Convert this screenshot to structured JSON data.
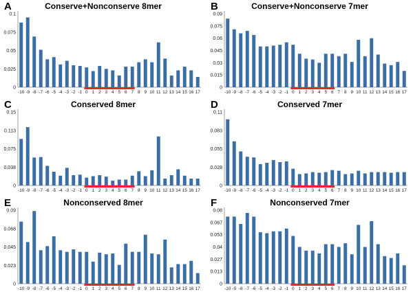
{
  "colors": {
    "bar": "#3b6ea5",
    "highlight": "#e8262a",
    "axis": "#888888"
  },
  "chart_data": [
    {
      "type": "bar",
      "letter": "A",
      "title": "Conserve+Nonconserve 8mer",
      "ylim": [
        0,
        0.1
      ],
      "yticks": [
        "0",
        "0.025",
        "0.05",
        "0.075",
        "0.1"
      ],
      "categories": [
        "-10",
        "-9",
        "-8",
        "-7",
        "-6",
        "-5",
        "-4",
        "-3",
        "-2",
        "-1",
        "0",
        "1",
        "2",
        "3",
        "4",
        "5",
        "6",
        "7",
        "8",
        "9",
        "10",
        "11",
        "12",
        "13",
        "14",
        "15",
        "16",
        "17"
      ],
      "values": [
        0.088,
        0.095,
        0.069,
        0.051,
        0.038,
        0.041,
        0.031,
        0.036,
        0.03,
        0.029,
        0.027,
        0.022,
        0.029,
        0.025,
        0.023,
        0.016,
        0.028,
        0.028,
        0.034,
        0.038,
        0.034,
        0.061,
        0.039,
        0.016,
        0.023,
        0.028,
        0.023,
        0.014
      ],
      "highlight": {
        "from": "0",
        "to": "7"
      }
    },
    {
      "type": "bar",
      "letter": "B",
      "title": "Conserve+Nonconserve 7mer",
      "ylim": [
        0,
        0.09
      ],
      "yticks": [
        "0",
        "0.015",
        "0.03",
        "0.045",
        "0.06",
        "0.075",
        "0.09"
      ],
      "categories": [
        "-10",
        "-9",
        "-8",
        "-7",
        "-6",
        "-5",
        "-4",
        "-3",
        "-2",
        "-1",
        "0",
        "1",
        "2",
        "3",
        "4",
        "5",
        "6",
        "7",
        "8",
        "9",
        "10",
        "11",
        "12",
        "13",
        "14",
        "15",
        "16",
        "17"
      ],
      "values": [
        0.084,
        0.071,
        0.066,
        0.069,
        0.064,
        0.05,
        0.05,
        0.051,
        0.052,
        0.055,
        0.052,
        0.041,
        0.035,
        0.034,
        0.03,
        0.041,
        0.041,
        0.038,
        0.041,
        0.031,
        0.058,
        0.038,
        0.06,
        0.04,
        0.029,
        0.027,
        0.031,
        0.02
      ],
      "highlight": {
        "from": "0",
        "to": "6"
      }
    },
    {
      "type": "bar",
      "letter": "C",
      "title": "Conserved 8mer",
      "ylim": [
        0,
        0.15
      ],
      "yticks": [
        "0",
        "0.038",
        "0.075",
        "0.113",
        "0.15"
      ],
      "categories": [
        "-10",
        "-9",
        "-8",
        "-7",
        "-6",
        "-5",
        "-4",
        "-3",
        "-2",
        "-1",
        "0",
        "1",
        "2",
        "3",
        "4",
        "5",
        "6",
        "7",
        "8",
        "9",
        "10",
        "11",
        "12",
        "13",
        "14",
        "15",
        "16",
        "17"
      ],
      "values": [
        0.095,
        0.119,
        0.057,
        0.058,
        0.04,
        0.028,
        0.02,
        0.036,
        0.021,
        0.022,
        0.016,
        0.019,
        0.021,
        0.018,
        0.01,
        0.012,
        0.012,
        0.02,
        0.029,
        0.019,
        0.031,
        0.1,
        0.014,
        0.021,
        0.033,
        0.02,
        0.014,
        0.014
      ],
      "highlight": {
        "from": "0",
        "to": "7"
      }
    },
    {
      "type": "bar",
      "letter": "D",
      "title": "Conserved 7mer",
      "ylim": [
        0,
        0.11
      ],
      "yticks": [
        "0",
        "0.028",
        "0.055",
        "0.083",
        "0.11"
      ],
      "categories": [
        "-10",
        "-9",
        "-8",
        "-7",
        "-6",
        "-5",
        "-4",
        "-3",
        "-2",
        "-1",
        "0",
        "1",
        "2",
        "3",
        "4",
        "5",
        "6",
        "7",
        "8",
        "9",
        "10",
        "11",
        "12",
        "13",
        "14",
        "15",
        "16",
        "17"
      ],
      "values": [
        0.099,
        0.066,
        0.051,
        0.043,
        0.042,
        0.032,
        0.034,
        0.038,
        0.035,
        0.036,
        0.025,
        0.017,
        0.018,
        0.02,
        0.019,
        0.02,
        0.023,
        0.022,
        0.017,
        0.018,
        0.022,
        0.018,
        0.02,
        0.02,
        0.02,
        0.019,
        0.02,
        0.02
      ],
      "highlight": {
        "from": "0",
        "to": "6"
      }
    },
    {
      "type": "bar",
      "letter": "E",
      "title": "Nonconserved 8mer",
      "ylim": [
        0,
        0.09
      ],
      "yticks": [
        "0",
        "0.023",
        "0.045",
        "0.068",
        "0.09"
      ],
      "categories": [
        "-10",
        "-9",
        "-8",
        "-7",
        "-6",
        "-5",
        "-4",
        "-3",
        "-2",
        "-1",
        "0",
        "1",
        "2",
        "3",
        "4",
        "5",
        "6",
        "7",
        "8",
        "9",
        "10",
        "11",
        "12",
        "13",
        "14",
        "15",
        "16",
        "17"
      ],
      "values": [
        0.076,
        0.051,
        0.089,
        0.041,
        0.046,
        0.058,
        0.041,
        0.039,
        0.042,
        0.039,
        0.039,
        0.027,
        0.038,
        0.036,
        0.037,
        0.023,
        0.049,
        0.039,
        0.039,
        0.06,
        0.037,
        0.036,
        0.054,
        0.02,
        0.024,
        0.024,
        0.028,
        0.013
      ],
      "highlight": {
        "from": "0",
        "to": "7"
      }
    },
    {
      "type": "bar",
      "letter": "F",
      "title": "Nonconserved 7mer",
      "ylim": [
        0,
        0.08
      ],
      "yticks": [
        "0",
        "0.013",
        "0.027",
        "0.04",
        "0.053",
        "0.067",
        "0.08"
      ],
      "categories": [
        "-10",
        "-9",
        "-8",
        "-7",
        "-6",
        "-5",
        "-4",
        "-3",
        "-2",
        "-1",
        "0",
        "1",
        "2",
        "3",
        "4",
        "5",
        "6",
        "7",
        "8",
        "9",
        "10",
        "11",
        "12",
        "13",
        "14",
        "15",
        "16",
        "17"
      ],
      "values": [
        0.073,
        0.073,
        0.065,
        0.077,
        0.073,
        0.056,
        0.055,
        0.057,
        0.057,
        0.06,
        0.052,
        0.04,
        0.036,
        0.036,
        0.033,
        0.043,
        0.043,
        0.04,
        0.044,
        0.032,
        0.064,
        0.04,
        0.068,
        0.043,
        0.03,
        0.028,
        0.033,
        0.02
      ],
      "highlight": {
        "from": "0",
        "to": "6"
      }
    }
  ]
}
